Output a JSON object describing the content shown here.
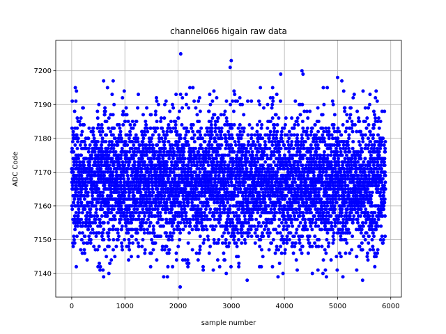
{
  "chart_data": {
    "type": "scatter",
    "title": "channel066 higain raw data",
    "xlabel": "sample number",
    "ylabel": "ADC Code",
    "xlim": [
      -300,
      6200
    ],
    "ylim": [
      7133,
      7209
    ],
    "xticks": [
      0,
      1000,
      2000,
      3000,
      4000,
      5000,
      6000
    ],
    "yticks": [
      7140,
      7150,
      7160,
      7170,
      7180,
      7190,
      7200
    ],
    "grid": true,
    "marker": "circle",
    "color": "#0000ff",
    "n_points": 5900,
    "x_range": [
      0,
      5900
    ],
    "typical_range": [
      7150,
      7185
    ],
    "mean": 7167,
    "notable_points": [
      {
        "x": 2050,
        "y": 7205
      },
      {
        "x": 3000,
        "y": 7203
      },
      {
        "x": 2980,
        "y": 7201
      },
      {
        "x": 4330,
        "y": 7200
      },
      {
        "x": 4350,
        "y": 7199
      },
      {
        "x": 3930,
        "y": 7199
      },
      {
        "x": 5000,
        "y": 7198
      },
      {
        "x": 5080,
        "y": 7197
      },
      {
        "x": 600,
        "y": 7197
      },
      {
        "x": 780,
        "y": 7197
      },
      {
        "x": 2040,
        "y": 7136
      },
      {
        "x": 3300,
        "y": 7138
      },
      {
        "x": 5470,
        "y": 7138
      },
      {
        "x": 1730,
        "y": 7139
      },
      {
        "x": 1800,
        "y": 7139
      },
      {
        "x": 600,
        "y": 7139
      },
      {
        "x": 4790,
        "y": 7139
      },
      {
        "x": 5100,
        "y": 7139
      },
      {
        "x": 3880,
        "y": 7139
      }
    ]
  }
}
